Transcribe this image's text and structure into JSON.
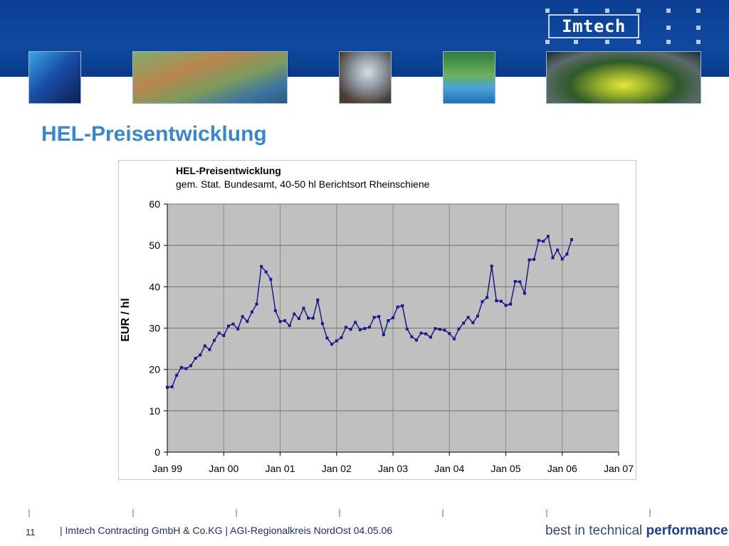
{
  "header": {
    "logo_text": "Imtech",
    "brand_color": "#0b3d91"
  },
  "slide": {
    "title": "HEL-Preisentwicklung",
    "title_color": "#3b87c8"
  },
  "chart_data": {
    "type": "line",
    "title": "HEL-Preisentwicklung",
    "subtitle": "gem. Stat. Bundesamt, 40-50 hl Berichtsort Rheinschiene",
    "ylabel": "EUR / hl",
    "xlabel": "",
    "ylim": [
      0,
      60
    ],
    "yticks": [
      "0",
      "10",
      "20",
      "30",
      "40",
      "50",
      "60"
    ],
    "xlim": [
      "Jan 99",
      "Jan 07"
    ],
    "xticks": [
      "Jan 99",
      "Jan 00",
      "Jan 01",
      "Jan 02",
      "Jan 03",
      "Jan 04",
      "Jan 05",
      "Jan 06",
      "Jan 07"
    ],
    "grid": true,
    "plot_background": "#c0c0c0",
    "series_color": "#1a1a8c",
    "series": [
      {
        "values": [
          15.7,
          15.8,
          18.6,
          20.5,
          20.2,
          20.9,
          22.7,
          23.5,
          25.7,
          24.8,
          27.0,
          28.8,
          28.2,
          30.5,
          31.0,
          29.8,
          32.8,
          31.6,
          33.9,
          35.8,
          44.9,
          43.6,
          41.8,
          34.2,
          31.6,
          31.8,
          30.6,
          33.4,
          32.3,
          34.8,
          32.4,
          32.4,
          36.8,
          31.1,
          27.6,
          26.1,
          26.9,
          27.7,
          30.2,
          29.7,
          31.4,
          29.6,
          29.9,
          30.2,
          32.6,
          32.8,
          28.4,
          31.8,
          32.5,
          35.1,
          35.4,
          29.8,
          27.9,
          27.1,
          28.8,
          28.6,
          27.8,
          29.9,
          29.7,
          29.5,
          28.7,
          27.4,
          29.8,
          31.2,
          32.6,
          31.3,
          32.9,
          36.4,
          37.4,
          45.0,
          36.6,
          36.5,
          35.5,
          35.8,
          41.3,
          41.2,
          38.4,
          46.5,
          46.6,
          51.2,
          51.0,
          52.2,
          47.0,
          48.9,
          46.7,
          47.9,
          51.4
        ]
      }
    ]
  },
  "footer": {
    "page_number": "11",
    "text": "| Imtech Contracting GmbH & Co.KG | AGI-Regionalkreis NordOst 04.05.06",
    "tagline_normal": "best in technical ",
    "tagline_bold": "performance"
  }
}
